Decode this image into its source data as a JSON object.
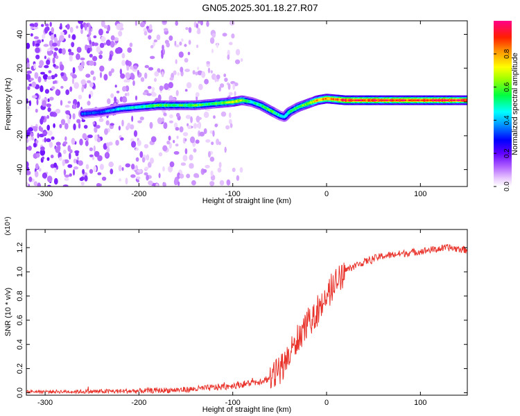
{
  "title": "GN05.2025.301.18.27.R07",
  "chart_data": [
    {
      "type": "heatmap",
      "title": "GN05.2025.301.18.27.R07",
      "xlabel": "Height of straight line (km)",
      "ylabel": "Frequency (Hz)",
      "xlim": [
        -320,
        150
      ],
      "ylim": [
        -50,
        48
      ],
      "x_ticks": [
        -300,
        -200,
        -100,
        0,
        100
      ],
      "y_ticks": [
        -40,
        -20,
        0,
        20,
        40
      ],
      "colorbar": {
        "label": "Normalized spectral amplitude",
        "range": [
          0,
          1
        ],
        "ticks": [
          0.0,
          0.2,
          0.4,
          0.6,
          0.8
        ],
        "colors": [
          "#ffffff",
          "#e8c8ff",
          "#7b00ff",
          "#0000ff",
          "#00ffff",
          "#00ff00",
          "#ffff00",
          "#ff8000",
          "#ff0000",
          "#ff0088"
        ]
      },
      "ridge": {
        "x": [
          -260,
          -240,
          -220,
          -200,
          -180,
          -160,
          -140,
          -120,
          -100,
          -90,
          -80,
          -70,
          -60,
          -50,
          -45,
          -40,
          -30,
          -20,
          -10,
          0,
          20,
          50,
          100,
          150
        ],
        "y": [
          -7,
          -6,
          -4,
          -3,
          -2,
          -2,
          -2,
          -1,
          0,
          1,
          0,
          -2,
          -5,
          -8,
          -9,
          -6,
          -3,
          -1,
          1,
          2,
          1,
          1,
          1,
          1
        ],
        "amplitude": [
          0.35,
          0.35,
          0.45,
          0.5,
          0.6,
          0.55,
          0.6,
          0.55,
          0.7,
          0.7,
          0.5,
          0.55,
          0.6,
          0.5,
          0.45,
          0.55,
          0.6,
          0.65,
          0.8,
          0.85,
          0.95,
          0.95,
          0.95,
          0.95
        ]
      },
      "noise_region": {
        "x_range": [
          -320,
          -90
        ],
        "amplitude_range": [
          0.0,
          0.12
        ]
      }
    },
    {
      "type": "line",
      "xlabel": "Height of straight line (km)",
      "ylabel": "SNR (10 * v/v)",
      "y_multiplier": "(x10⁴)",
      "xlim": [
        -320,
        150
      ],
      "ylim": [
        -0.02,
        1.35
      ],
      "x_ticks": [
        -300,
        -200,
        -100,
        0,
        100
      ],
      "y_ticks": [
        0.0,
        0.2,
        0.4,
        0.6,
        0.8,
        1.0,
        1.2
      ],
      "color": "#e8322a",
      "series": [
        {
          "x": [
            -320,
            -300,
            -250,
            -200,
            -175,
            -150,
            -125,
            -110,
            -100,
            -90,
            -80,
            -70,
            -60,
            -55,
            -50,
            -45,
            -40,
            -35,
            -30,
            -25,
            -20,
            -15,
            -10,
            -5,
            0,
            5,
            10,
            15,
            20,
            30,
            40,
            50,
            60,
            70,
            80,
            90,
            100,
            110,
            120,
            130,
            140,
            150
          ],
          "y": [
            0.01,
            0.01,
            0.01,
            0.015,
            0.02,
            0.025,
            0.04,
            0.05,
            0.06,
            0.07,
            0.08,
            0.1,
            0.12,
            0.15,
            0.2,
            0.25,
            0.3,
            0.38,
            0.45,
            0.52,
            0.58,
            0.62,
            0.68,
            0.74,
            0.8,
            0.86,
            0.92,
            0.97,
            1.01,
            1.05,
            1.08,
            1.11,
            1.13,
            1.14,
            1.15,
            1.16,
            1.17,
            1.18,
            1.19,
            1.2,
            1.19,
            1.18
          ]
        }
      ]
    }
  ]
}
